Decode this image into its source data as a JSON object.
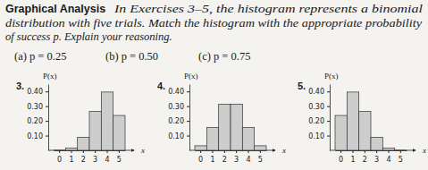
{
  "text": {
    "heading": "Graphical Analysis",
    "intro_lines": [
      "In Exercises 3–5, the histogram represents a binomial",
      "distribution with five trials. Match the histogram with the appropriate probability",
      "of success p. Explain your reasoning."
    ],
    "options": [
      "(a) p = 0.25",
      "(b) p = 0.50",
      "(c) p = 0.75"
    ]
  },
  "chart_data": [
    {
      "type": "bar",
      "title": "3.",
      "y_label": "P(x)",
      "x_label": "x",
      "categories": [
        "0",
        "1",
        "2",
        "3",
        "4",
        "5"
      ],
      "values": [
        0.001,
        0.015,
        0.088,
        0.264,
        0.396,
        0.237
      ],
      "color": "#cdcdcd",
      "ylim": [
        0,
        0.45
      ],
      "yticks": [
        {
          "value": 0.1,
          "label": "0.10"
        },
        {
          "value": 0.2,
          "label": "0.20"
        },
        {
          "value": 0.3,
          "label": "0.30"
        },
        {
          "value": 0.4,
          "label": "0.40"
        }
      ],
      "grid": false
    },
    {
      "type": "bar",
      "title": "4.",
      "y_label": "P(x)",
      "x_label": "x",
      "categories": [
        "0",
        "1",
        "2",
        "3",
        "4",
        "5"
      ],
      "values": [
        0.031,
        0.156,
        0.313,
        0.313,
        0.156,
        0.031
      ],
      "color": "#cdcdcd",
      "ylim": [
        0,
        0.45
      ],
      "yticks": [
        {
          "value": 0.1,
          "label": "0.10"
        },
        {
          "value": 0.2,
          "label": "0.20"
        },
        {
          "value": 0.3,
          "label": "0.30"
        },
        {
          "value": 0.4,
          "label": "0.40"
        }
      ],
      "grid": false
    },
    {
      "type": "bar",
      "title": "5.",
      "y_label": "P(x)",
      "x_label": "x",
      "categories": [
        "0",
        "1",
        "2",
        "3",
        "4",
        "5"
      ],
      "values": [
        0.237,
        0.396,
        0.264,
        0.088,
        0.015,
        0.001
      ],
      "color": "#cdcdcd",
      "ylim": [
        0,
        0.45
      ],
      "yticks": [
        {
          "value": 0.1,
          "label": "0.10"
        },
        {
          "value": 0.2,
          "label": "0.20"
        },
        {
          "value": 0.3,
          "label": "0.30"
        },
        {
          "value": 0.4,
          "label": "0.40"
        }
      ],
      "grid": false
    }
  ]
}
